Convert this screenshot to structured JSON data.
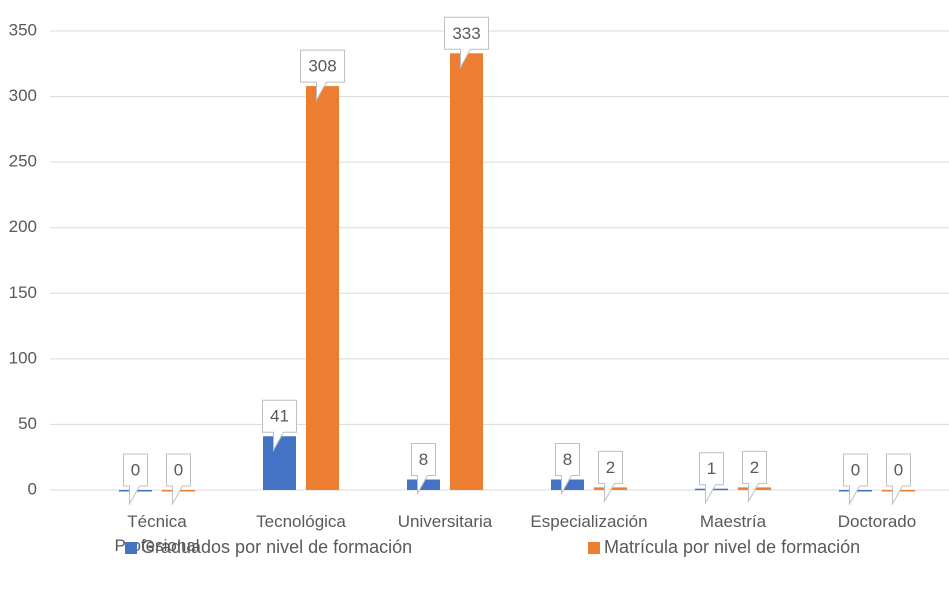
{
  "chart_data": {
    "type": "bar",
    "categories": [
      "Técnica Profesional",
      "Tecnológica",
      "Universitaria",
      "Especialización",
      "Maestría",
      "Doctorado"
    ],
    "series": [
      {
        "name": "Graduados por nivel de formación",
        "color": "#4472c4",
        "values": [
          0,
          41,
          8,
          8,
          1,
          0
        ]
      },
      {
        "name": "Matrícula por nivel de formación",
        "color": "#ed7d31",
        "values": [
          0,
          308,
          333,
          2,
          2,
          0
        ]
      }
    ],
    "ylim": [
      0,
      350
    ],
    "yticks": [
      0,
      50,
      100,
      150,
      200,
      250,
      300,
      350
    ],
    "grid": true,
    "legend": "bottom"
  }
}
